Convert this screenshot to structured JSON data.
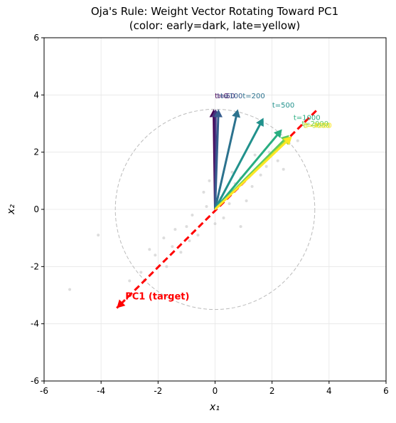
{
  "chart_data": {
    "type": "quiver",
    "title": "Oja's Rule: Weight Vector Rotating Toward PC1",
    "subtitle": "(color: early=dark, late=yellow)",
    "x_label": "x₁",
    "y_label": "x₂",
    "xlim": [
      -6,
      6
    ],
    "ylim": [
      -6,
      6
    ],
    "xticks": [
      -6,
      -4,
      -2,
      0,
      2,
      4,
      6
    ],
    "yticks": [
      -6,
      -4,
      -2,
      0,
      2,
      4,
      6
    ],
    "grid": true,
    "circle_radius": 3.5,
    "samples": {
      "color": "#bbbbbb",
      "x": [
        -2.1,
        -1.5,
        -1.0,
        -0.6,
        -0.3,
        0.2,
        0.5,
        0.9,
        1.3,
        1.8,
        2.2,
        2.6,
        -2.6,
        -1.8,
        -1.2,
        -0.8,
        0.0,
        0.7,
        1.1,
        1.6,
        -3.0,
        -0.4,
        0.3,
        1.9,
        -1.4,
        2.4,
        -0.9,
        0.6,
        -2.3,
        1.4,
        -5.1,
        -4.1,
        0.9,
        -1.7,
        2.9,
        -0.2
      ],
      "y": [
        -1.6,
        -1.3,
        -0.6,
        -0.9,
        0.1,
        0.4,
        0.2,
        1.1,
        0.8,
        1.5,
        1.7,
        2.3,
        -2.2,
        -1.0,
        -1.5,
        -0.2,
        -0.5,
        0.9,
        0.3,
        1.2,
        -2.5,
        0.6,
        -0.3,
        2.0,
        -0.7,
        1.4,
        -1.1,
        1.3,
        -1.4,
        1.9,
        -2.8,
        -0.9,
        -0.6,
        -2.0,
        2.4,
        1.0
      ]
    },
    "reference": {
      "name": "PC1 (target)",
      "color": "#ff0000",
      "x": [
        3.55,
        -3.45
      ],
      "y": [
        3.45,
        -3.45
      ]
    },
    "arrows": [
      {
        "name": "t=0",
        "color": "#440154",
        "dx": -0.05,
        "dy": 3.5
      },
      {
        "name": "t=50",
        "color": "#46327e",
        "dx": 0.02,
        "dy": 3.5
      },
      {
        "name": "t=100",
        "color": "#365c8d",
        "dx": 0.12,
        "dy": 3.5
      },
      {
        "name": "t=200",
        "color": "#2c728e",
        "dx": 0.8,
        "dy": 3.5
      },
      {
        "name": "t=500",
        "color": "#21918c",
        "dx": 1.7,
        "dy": 3.2
      },
      {
        "name": "t=1000",
        "color": "#28ae80",
        "dx": 2.35,
        "dy": 2.8
      },
      {
        "name": "t=2000",
        "color": "#5ec962",
        "dx": 2.6,
        "dy": 2.6
      },
      {
        "name": "t=3000",
        "color": "#addc30",
        "dx": 2.65,
        "dy": 2.55
      },
      {
        "name": "t=4000",
        "color": "#fde725",
        "dx": 2.7,
        "dy": 2.55
      }
    ]
  }
}
